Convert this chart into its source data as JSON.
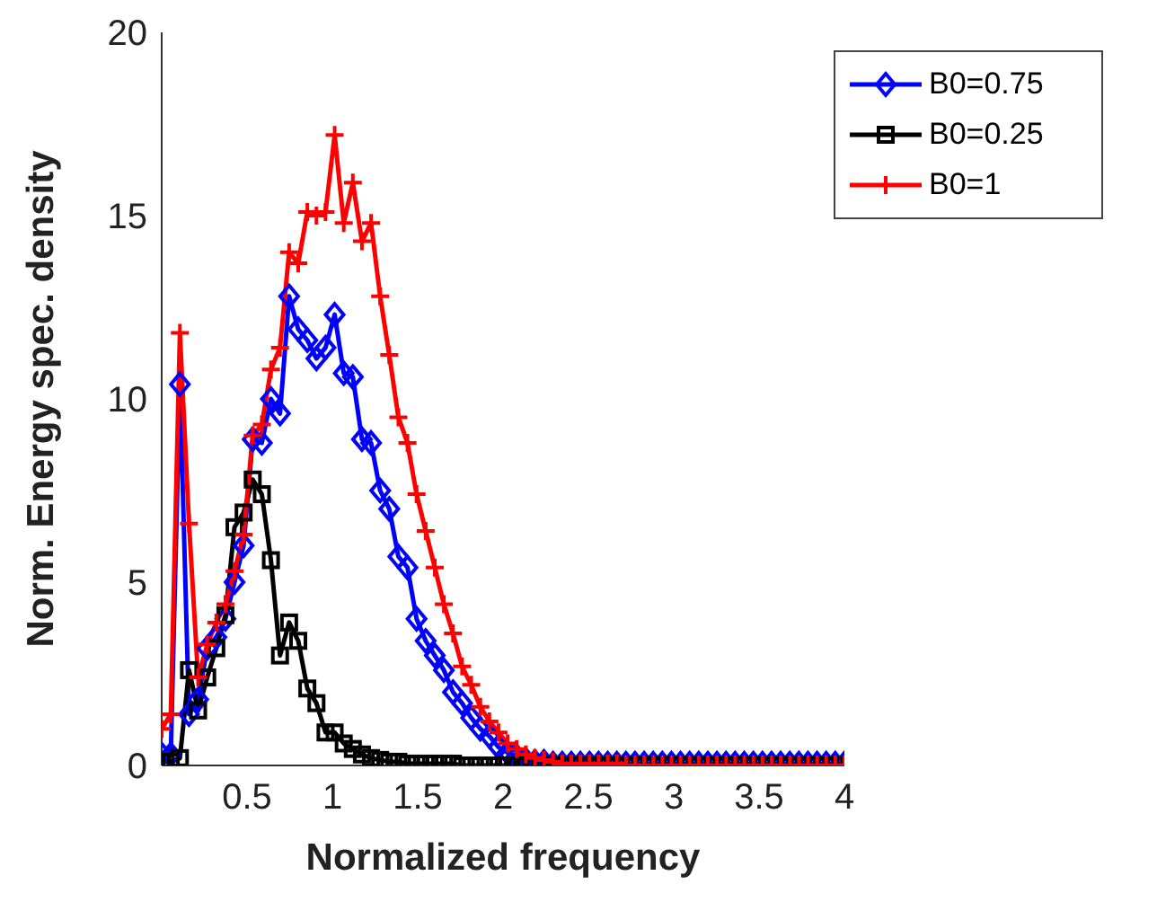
{
  "chart_data": {
    "type": "line",
    "xlabel": "Normalized frequency",
    "ylabel": "Norm. Energy spec. density",
    "x": [
      0,
      0.0533,
      0.1067,
      0.16,
      0.2133,
      0.2667,
      0.32,
      0.3733,
      0.4267,
      0.48,
      0.5333,
      0.5867,
      0.64,
      0.6933,
      0.7467,
      0.8,
      0.8533,
      0.9067,
      0.96,
      1.0133,
      1.0667,
      1.12,
      1.1733,
      1.2267,
      1.28,
      1.3333,
      1.3867,
      1.44,
      1.4933,
      1.5467,
      1.6,
      1.6533,
      1.7067,
      1.76,
      1.8133,
      1.8667,
      1.92,
      1.9733,
      2.0267,
      2.08,
      2.1333,
      2.1867,
      2.24,
      2.2933,
      2.3467,
      2.4,
      2.4533,
      2.5067,
      2.56,
      2.6133,
      2.6667,
      2.72,
      2.7733,
      2.8267,
      2.88,
      2.9333,
      2.9867,
      3.04,
      3.0933,
      3.1467,
      3.2,
      3.2533,
      3.3067,
      3.36,
      3.4133,
      3.4667,
      3.52,
      3.5733,
      3.6267,
      3.68,
      3.7333,
      3.7867,
      3.84,
      3.8933,
      3.9467,
      4
    ],
    "series": [
      {
        "name": "B0=0.75",
        "color": "#0000ff",
        "marker": "diamond",
        "values": [
          0.3,
          0.3,
          10.4,
          1.4,
          1.8,
          3.2,
          3.5,
          4.0,
          5.0,
          6.0,
          8.9,
          8.8,
          10.0,
          9.6,
          12.8,
          11.9,
          11.6,
          11.1,
          11.4,
          12.3,
          10.7,
          10.6,
          8.9,
          8.8,
          7.5,
          7.0,
          5.7,
          5.4,
          4.0,
          3.4,
          3.0,
          2.6,
          2.0,
          1.7,
          1.3,
          1.0,
          0.8,
          0.5,
          0.35,
          0.25,
          0.15,
          0.1,
          0.1,
          0.05,
          0.05,
          0.05,
          0.05,
          0.05,
          0.05,
          0.05,
          0.05,
          0.05,
          0.05,
          0.05,
          0.05,
          0.05,
          0.05,
          0.05,
          0.05,
          0.05,
          0.05,
          0.05,
          0.05,
          0.05,
          0.05,
          0.05,
          0.05,
          0.05,
          0.05,
          0.05,
          0.05,
          0.05,
          0.05,
          0.05,
          0.05,
          0.05
        ]
      },
      {
        "name": "B0=0.25",
        "color": "#000000",
        "marker": "square",
        "values": [
          0.1,
          0.1,
          0.2,
          2.6,
          1.5,
          2.4,
          3.2,
          4.1,
          6.5,
          6.9,
          7.8,
          7.4,
          5.6,
          3.0,
          3.9,
          3.4,
          2.1,
          1.7,
          0.9,
          0.9,
          0.6,
          0.45,
          0.3,
          0.2,
          0.15,
          0.1,
          0.1,
          0.05,
          0.05,
          0.05,
          0.05,
          0.05,
          0.05,
          0,
          0,
          0,
          0,
          0,
          0,
          0,
          0,
          0,
          0,
          0,
          0,
          0,
          0,
          0,
          0,
          0,
          0,
          0,
          0,
          0,
          0,
          0,
          0,
          0,
          0,
          0,
          0,
          0,
          0,
          0,
          0,
          0,
          0,
          0,
          0,
          0,
          0,
          0,
          0,
          0,
          0,
          0
        ]
      },
      {
        "name": "B0=1",
        "color": "#ff0000",
        "marker": "cross",
        "values": [
          1.0,
          1.4,
          11.8,
          6.6,
          2.4,
          3.3,
          3.9,
          4.4,
          5.3,
          6.3,
          9.0,
          9.3,
          10.8,
          11.4,
          14.0,
          13.7,
          15.1,
          15.0,
          15.1,
          17.2,
          14.8,
          15.9,
          14.3,
          14.8,
          12.8,
          11.2,
          9.5,
          8.8,
          7.4,
          6.4,
          5.4,
          4.4,
          3.6,
          2.7,
          2.2,
          1.6,
          1.2,
          0.9,
          0.6,
          0.45,
          0.3,
          0.2,
          0.15,
          0.1,
          0.05,
          0.05,
          0.05,
          0.05,
          0.05,
          0.05,
          0.05,
          0,
          0,
          0,
          0,
          0,
          0,
          0,
          0,
          0,
          0,
          0,
          0,
          0,
          0,
          0,
          0,
          0,
          0,
          0,
          0,
          0,
          0,
          0,
          0,
          0
        ]
      }
    ],
    "xlim": [
      0,
      4
    ],
    "xticks": [
      0.5,
      1,
      1.5,
      2,
      2.5,
      3,
      3.5,
      4
    ],
    "ylim": [
      0,
      20
    ],
    "yticks": [
      0,
      5,
      10,
      15,
      20
    ],
    "grid": false,
    "legend": "top right",
    "line_style": "solid"
  }
}
